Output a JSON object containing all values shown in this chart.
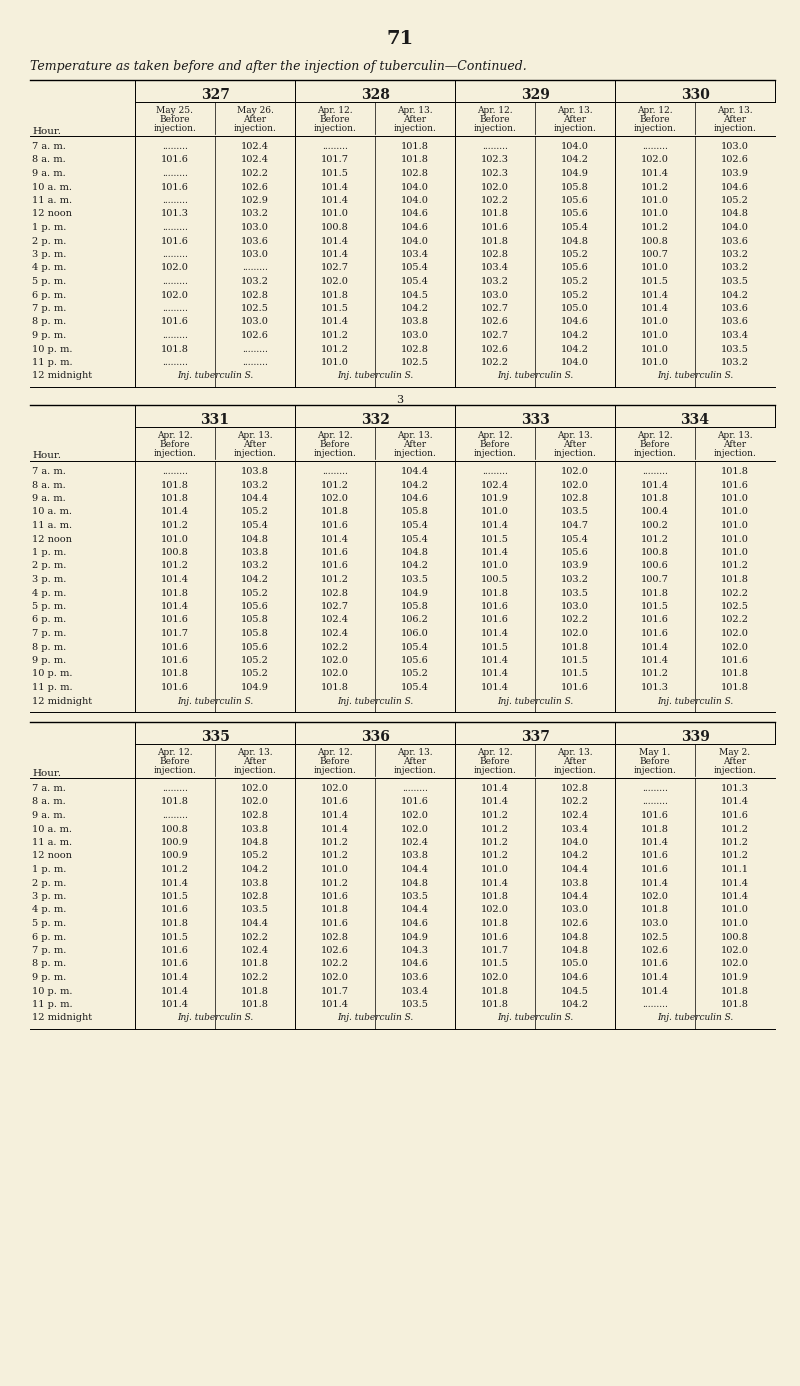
{
  "page_number": "71",
  "title": "Temperature as taken before and after the injection of tuberculin—Continued.",
  "bg_color": "#f5f0dc",
  "text_color": "#1a1a1a",
  "table1": {
    "group_headers": [
      "327",
      "328",
      "329",
      "330"
    ],
    "col_headers": [
      [
        "May 25.",
        "May 26.",
        "Apr. 12.",
        "Apr. 13.",
        "Apr. 12.",
        "Apr. 13.",
        "Apr. 12.",
        "Apr. 13."
      ],
      [
        "Before",
        "After",
        "Before",
        "After",
        "Before",
        "After",
        "Before",
        "After"
      ],
      [
        "injection.",
        "injection.",
        "injection.",
        "injection.",
        "injection.",
        "injection.",
        "injection.",
        "injection."
      ]
    ],
    "hours": [
      "7 a. m.",
      "8 a. m.",
      "9 a. m.",
      "10 a. m.",
      "11 a. m.",
      "12 noon",
      "1 p. m.",
      "2 p. m.",
      "3 p. m.",
      "4 p. m.",
      "5 p. m.",
      "6 p. m.",
      "7 p. m.",
      "8 p. m.",
      "9 p. m.",
      "10 p. m.",
      "11 p. m.",
      "12 midnight"
    ],
    "data": [
      [
        "",
        "102.4",
        "",
        "101.8",
        "",
        "104.0",
        "",
        "103.0"
      ],
      [
        "101.6",
        "102.4",
        "101.7",
        "101.8",
        "102.3",
        "104.2",
        "102.0",
        "102.6"
      ],
      [
        "",
        "102.2",
        "101.5",
        "102.8",
        "102.3",
        "104.9",
        "101.4",
        "103.9"
      ],
      [
        "101.6",
        "102.6",
        "101.4",
        "104.0",
        "102.0",
        "105.8",
        "101.2",
        "104.6"
      ],
      [
        "",
        "102.9",
        "101.4",
        "104.0",
        "102.2",
        "105.6",
        "101.0",
        "105.2"
      ],
      [
        "101.3",
        "103.2",
        "101.0",
        "104.6",
        "101.8",
        "105.6",
        "101.0",
        "104.8"
      ],
      [
        "",
        "103.0",
        "100.8",
        "104.6",
        "101.6",
        "105.4",
        "101.2",
        "104.0"
      ],
      [
        "101.6",
        "103.6",
        "101.4",
        "104.0",
        "101.8",
        "104.8",
        "100.8",
        "103.6"
      ],
      [
        "",
        "103.0",
        "101.4",
        "103.4",
        "102.8",
        "105.2",
        "100.7",
        "103.2"
      ],
      [
        "102.0",
        "",
        "102.7",
        "105.4",
        "103.4",
        "105.6",
        "101.0",
        "103.2"
      ],
      [
        "",
        "103.2",
        "102.0",
        "105.4",
        "103.2",
        "105.2",
        "101.5",
        "103.5"
      ],
      [
        "102.0",
        "102.8",
        "101.8",
        "104.5",
        "103.0",
        "105.2",
        "101.4",
        "104.2"
      ],
      [
        "",
        "102.5",
        "101.5",
        "104.2",
        "102.7",
        "105.0",
        "101.4",
        "103.6"
      ],
      [
        "101.6",
        "103.0",
        "101.4",
        "103.8",
        "102.6",
        "104.6",
        "101.0",
        "103.6"
      ],
      [
        "",
        "102.6",
        "101.2",
        "103.0",
        "102.7",
        "104.2",
        "101.0",
        "103.4"
      ],
      [
        "101.8",
        "",
        "101.2",
        "102.8",
        "102.6",
        "104.2",
        "101.0",
        "103.5"
      ],
      [
        "",
        "",
        "101.0",
        "102.5",
        "102.2",
        "104.0",
        "101.0",
        "103.2"
      ],
      [
        "Inj. tuberculin S.",
        "",
        "Inj. tuberculin S.",
        "",
        "Inj. tuberculin S.",
        "",
        "Inj. tuberculin S.",
        ""
      ]
    ]
  },
  "table2": {
    "group_headers": [
      "331",
      "332",
      "333",
      "334"
    ],
    "col_headers": [
      [
        "Apr. 12.",
        "Apr. 13.",
        "Apr. 12.",
        "Apr. 13.",
        "Apr. 12.",
        "Apr. 13.",
        "Apr. 12.",
        "Apr. 13."
      ],
      [
        "Before",
        "After",
        "Before",
        "After",
        "Before",
        "After",
        "Before",
        "After"
      ],
      [
        "injection.",
        "injection.",
        "injection.",
        "injection.",
        "injection.",
        "injection.",
        "injection.",
        "injection."
      ]
    ],
    "hours": [
      "7 a. m.",
      "8 a. m.",
      "9 a. m.",
      "10 a. m.",
      "11 a. m.",
      "12 noon",
      "1 p. m.",
      "2 p. m.",
      "3 p. m.",
      "4 p. m.",
      "5 p. m.",
      "6 p. m.",
      "7 p. m.",
      "8 p. m.",
      "9 p. m.",
      "10 p. m.",
      "11 p. m.",
      "12 midnight"
    ],
    "data": [
      [
        "",
        "103.8",
        "",
        "104.4",
        "",
        "102.0",
        "",
        "101.8"
      ],
      [
        "101.8",
        "103.2",
        "101.2",
        "104.2",
        "102.4",
        "102.0",
        "101.4",
        "101.6"
      ],
      [
        "101.8",
        "104.4",
        "102.0",
        "104.6",
        "101.9",
        "102.8",
        "101.8",
        "101.0"
      ],
      [
        "101.4",
        "105.2",
        "101.8",
        "105.8",
        "101.0",
        "103.5",
        "100.4",
        "101.0"
      ],
      [
        "101.2",
        "105.4",
        "101.6",
        "105.4",
        "101.4",
        "104.7",
        "100.2",
        "101.0"
      ],
      [
        "101.0",
        "104.8",
        "101.4",
        "105.4",
        "101.5",
        "105.4",
        "101.2",
        "101.0"
      ],
      [
        "100.8",
        "103.8",
        "101.6",
        "104.8",
        "101.4",
        "105.6",
        "100.8",
        "101.0"
      ],
      [
        "101.2",
        "103.2",
        "101.6",
        "104.2",
        "101.0",
        "103.9",
        "100.6",
        "101.2"
      ],
      [
        "101.4",
        "104.2",
        "101.2",
        "103.5",
        "100.5",
        "103.2",
        "100.7",
        "101.8"
      ],
      [
        "101.8",
        "105.2",
        "102.8",
        "104.9",
        "101.8",
        "103.5",
        "101.8",
        "102.2"
      ],
      [
        "101.4",
        "105.6",
        "102.7",
        "105.8",
        "101.6",
        "103.0",
        "101.5",
        "102.5"
      ],
      [
        "101.6",
        "105.8",
        "102.4",
        "106.2",
        "101.6",
        "102.2",
        "101.6",
        "102.2"
      ],
      [
        "101.7",
        "105.8",
        "102.4",
        "106.0",
        "101.4",
        "102.0",
        "101.6",
        "102.0"
      ],
      [
        "101.6",
        "105.6",
        "102.2",
        "105.4",
        "101.5",
        "101.8",
        "101.4",
        "102.0"
      ],
      [
        "101.6",
        "105.2",
        "102.0",
        "105.6",
        "101.4",
        "101.5",
        "101.4",
        "101.6"
      ],
      [
        "101.8",
        "105.2",
        "102.0",
        "105.2",
        "101.4",
        "101.5",
        "101.2",
        "101.8"
      ],
      [
        "101.6",
        "104.9",
        "101.8",
        "105.4",
        "101.4",
        "101.6",
        "101.3",
        "101.8"
      ],
      [
        "Inj. tuberculin S.",
        "",
        "Inj. tuberculin S.",
        "",
        "Inj. tuberculin S.",
        "",
        "Inj. tuberculin S.",
        ""
      ]
    ]
  },
  "table3": {
    "group_headers": [
      "335",
      "336",
      "337",
      "339"
    ],
    "col_headers": [
      [
        "Apr. 12.",
        "Apr. 13.",
        "Apr. 12.",
        "Apr. 13.",
        "Apr. 12.",
        "Apr. 13.",
        "May 1.",
        "May 2."
      ],
      [
        "Before",
        "After",
        "Before",
        "After",
        "Before",
        "After",
        "Before",
        "After"
      ],
      [
        "injection.",
        "injection.",
        "injection.",
        "injection.",
        "injection.",
        "injection.",
        "injection.",
        "injection."
      ]
    ],
    "hours": [
      "7 a. m.",
      "8 a. m.",
      "9 a. m.",
      "10 a. m.",
      "11 a. m.",
      "12 noon",
      "1 p. m.",
      "2 p. m.",
      "3 p. m.",
      "4 p. m.",
      "5 p. m.",
      "6 p. m.",
      "7 p. m.",
      "8 p. m.",
      "9 p. m.",
      "10 p. m.",
      "11 p. m.",
      "12 midnight"
    ],
    "data": [
      [
        "",
        "102.0",
        "102.0",
        "",
        "101.4",
        "102.8",
        "",
        "101.3"
      ],
      [
        "101.8",
        "102.0",
        "101.6",
        "101.6",
        "101.4",
        "102.2",
        "",
        "101.4"
      ],
      [
        "",
        "102.8",
        "101.4",
        "102.0",
        "101.2",
        "102.4",
        "101.6",
        "101.6"
      ],
      [
        "100.8",
        "103.8",
        "101.4",
        "102.0",
        "101.2",
        "103.4",
        "101.8",
        "101.2"
      ],
      [
        "100.9",
        "104.8",
        "101.2",
        "102.4",
        "101.2",
        "104.0",
        "101.4",
        "101.2"
      ],
      [
        "100.9",
        "105.2",
        "101.2",
        "103.8",
        "101.2",
        "104.2",
        "101.6",
        "101.2"
      ],
      [
        "101.2",
        "104.2",
        "101.0",
        "104.4",
        "101.0",
        "104.4",
        "101.6",
        "101.1"
      ],
      [
        "101.4",
        "103.8",
        "101.2",
        "104.8",
        "101.4",
        "103.8",
        "101.4",
        "101.4"
      ],
      [
        "101.5",
        "102.8",
        "101.6",
        "103.5",
        "101.8",
        "104.4",
        "102.0",
        "101.4"
      ],
      [
        "101.6",
        "103.5",
        "101.8",
        "104.4",
        "102.0",
        "103.0",
        "101.8",
        "101.0"
      ],
      [
        "101.8",
        "104.4",
        "101.6",
        "104.6",
        "101.8",
        "102.6",
        "103.0",
        "101.0"
      ],
      [
        "101.5",
        "102.2",
        "102.8",
        "104.9",
        "101.6",
        "104.8",
        "102.5",
        "100.8"
      ],
      [
        "101.6",
        "102.4",
        "102.6",
        "104.3",
        "101.7",
        "104.8",
        "102.6",
        "102.0"
      ],
      [
        "101.6",
        "101.8",
        "102.2",
        "104.6",
        "101.5",
        "105.0",
        "101.6",
        "102.0"
      ],
      [
        "101.4",
        "102.2",
        "102.0",
        "103.6",
        "102.0",
        "104.6",
        "101.4",
        "101.9"
      ],
      [
        "101.4",
        "101.8",
        "101.7",
        "103.4",
        "101.8",
        "104.5",
        "101.4",
        "101.8"
      ],
      [
        "101.4",
        "101.8",
        "101.4",
        "103.5",
        "101.8",
        "104.2",
        "",
        "101.8"
      ],
      [
        "Inj. tuberculin S.",
        "",
        "Inj. tuberculin S.",
        "",
        "Inj. tuberculin S.",
        "",
        "Inj. tuberculin S.",
        ""
      ]
    ]
  }
}
